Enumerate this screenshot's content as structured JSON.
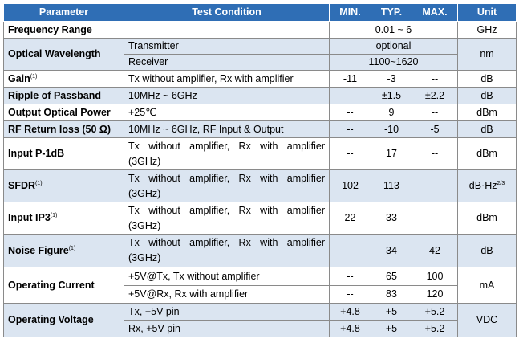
{
  "table": {
    "header": [
      "Parameter",
      "Test Condition",
      "MIN.",
      "TYP.",
      "MAX.",
      "Unit"
    ],
    "rows": [
      {
        "parameter": "Frequency Range",
        "unit": "GHz",
        "lines": [
          {
            "range": "0.01 ~ 6"
          }
        ]
      },
      {
        "parameter": "Optical Wavelength",
        "unit": "nm",
        "lines": [
          {
            "condition": "Transmitter",
            "range": "optional"
          },
          {
            "condition": "Receiver",
            "range": "1100~1620"
          }
        ]
      },
      {
        "parameter": "Gain",
        "note": "(1)",
        "unit": "dB",
        "lines": [
          {
            "condition": "Tx without amplifier, Rx with amplifier",
            "min": "-11",
            "typ": "-3",
            "max": "--"
          }
        ]
      },
      {
        "parameter": "Ripple of Passband",
        "unit": "dB",
        "lines": [
          {
            "condition": "10MHz ~ 6GHz",
            "min": "--",
            "typ": "±1.5",
            "max": "±2.2"
          }
        ]
      },
      {
        "parameter": "Output Optical Power",
        "unit": "dBm",
        "lines": [
          {
            "condition": "+25℃",
            "min": "--",
            "typ": "9",
            "max": "--"
          }
        ]
      },
      {
        "parameter": "RF Return loss (50 Ω)",
        "unit": "dB",
        "lines": [
          {
            "condition": "10MHz ~ 6GHz, RF Input & Output",
            "min": "--",
            "typ": "-10",
            "max": "-5"
          }
        ]
      },
      {
        "parameter": "Input P-1dB",
        "unit": "dBm",
        "lines": [
          {
            "condition": "Tx without amplifier, Rx with amplifier (3GHz)",
            "min": "--",
            "typ": "17",
            "max": "--"
          }
        ]
      },
      {
        "parameter": "SFDR",
        "note": "(1)",
        "unit": "dB·Hz",
        "unit_sup": "2/3",
        "lines": [
          {
            "condition": "Tx without amplifier, Rx with amplifier (3GHz)",
            "min": "102",
            "typ": "113",
            "max": "--"
          }
        ]
      },
      {
        "parameter": "Input IP3",
        "note": "(1)",
        "unit": "dBm",
        "lines": [
          {
            "condition": "Tx without amplifier, Rx with amplifier (3GHz)",
            "min": "22",
            "typ": "33",
            "max": "--"
          }
        ]
      },
      {
        "parameter": "Noise Figure",
        "note": "(1)",
        "unit": "dB",
        "lines": [
          {
            "condition": "Tx without amplifier, Rx with amplifier (3GHz)",
            "min": "--",
            "typ": "34",
            "max": "42"
          }
        ]
      },
      {
        "parameter": "Operating Current",
        "unit": "mA",
        "lines": [
          {
            "condition": "+5V@Tx, Tx without amplifier",
            "min": "--",
            "typ": "65",
            "max": "100"
          },
          {
            "condition": "+5V@Rx, Rx with amplifier",
            "min": "--",
            "typ": "83",
            "max": "120"
          }
        ]
      },
      {
        "parameter": "Operating Voltage",
        "unit": "VDC",
        "lines": [
          {
            "condition": "Tx,  +5V pin",
            "min": "+4.8",
            "typ": "+5",
            "max": "+5.2"
          },
          {
            "condition": "Rx,  +5V pin",
            "min": "+4.8",
            "typ": "+5",
            "max": "+5.2"
          }
        ]
      }
    ]
  }
}
